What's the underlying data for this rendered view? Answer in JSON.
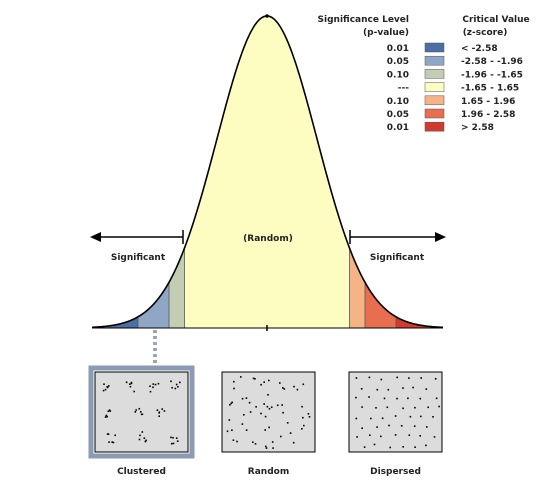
{
  "legend": {
    "p_header": "Significance Level",
    "p_sub": "(p-value)",
    "z_header": "Critical Value",
    "z_sub": "(z-score)",
    "rows": [
      {
        "p": "0.01",
        "z": "< -2.58",
        "color": "#4a6fa5"
      },
      {
        "p": "0.05",
        "z": "-2.58 - -1.96",
        "color": "#8fa6c6"
      },
      {
        "p": "0.10",
        "z": "-1.96 - -1.65",
        "color": "#c3cdb4"
      },
      {
        "p": "---",
        "z": "-1.65 - 1.65",
        "color": "#fdfdc2"
      },
      {
        "p": "0.10",
        "z": "1.65 - 1.96",
        "color": "#f6b486"
      },
      {
        "p": "0.05",
        "z": "1.96 - 2.58",
        "color": "#e96e50"
      },
      {
        "p": "0.01",
        "z": "> 2.58",
        "color": "#d23a2e"
      }
    ]
  },
  "curve": {
    "center_label": "(Random)",
    "left_label": "Significant",
    "right_label": "Significant"
  },
  "patterns": {
    "items": [
      {
        "label": "Clustered",
        "type": "clustered",
        "selected": true
      },
      {
        "label": "Random",
        "type": "random",
        "selected": false
      },
      {
        "label": "Dispersed",
        "type": "dispersed",
        "selected": false
      }
    ],
    "panel_color": "#dcdcdc",
    "selected_border": "#8b9bb4"
  }
}
